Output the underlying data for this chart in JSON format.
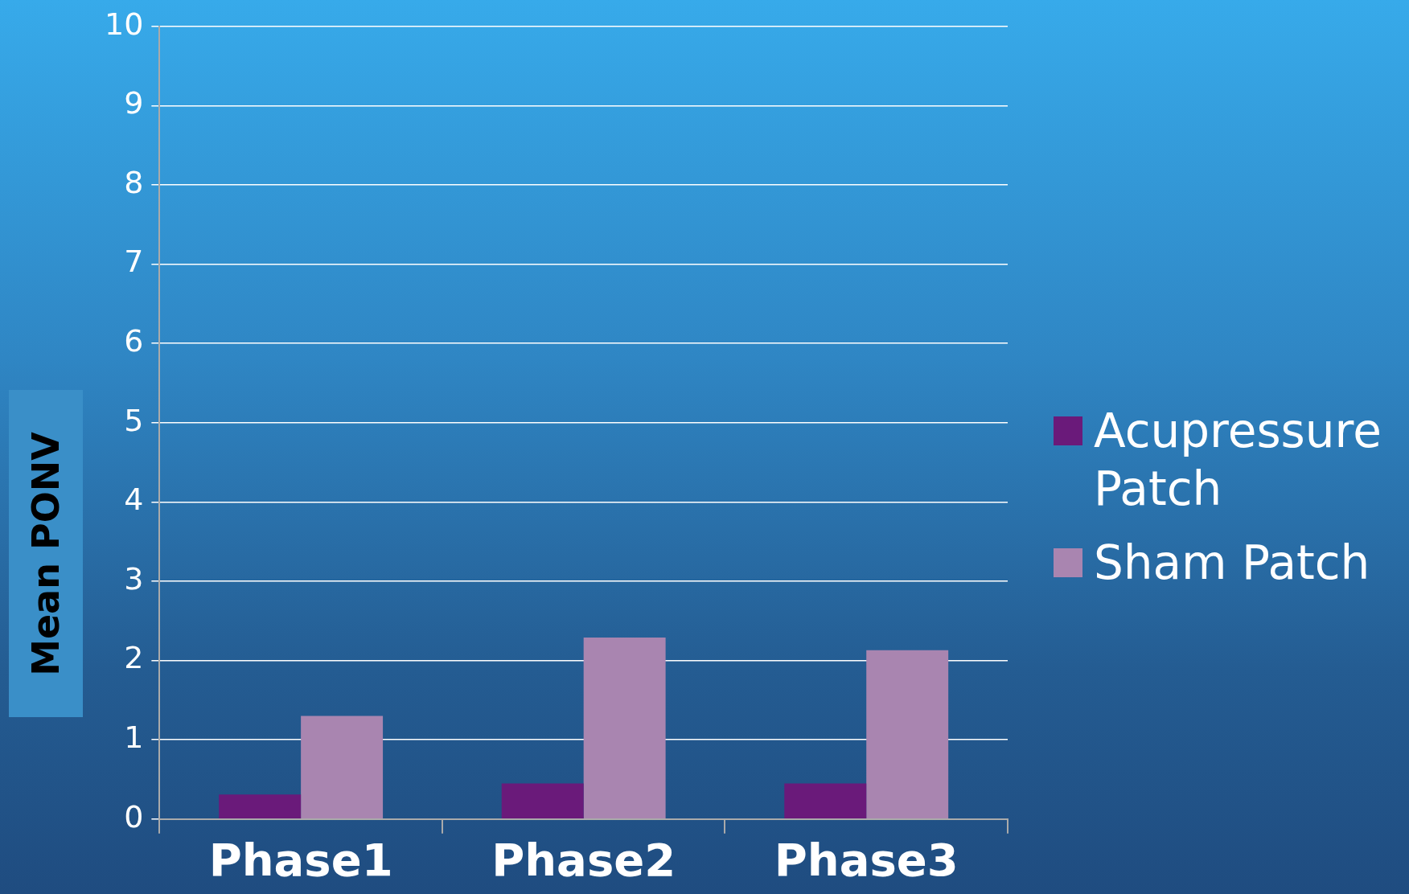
{
  "chart_data": {
    "type": "bar",
    "ylabel": "Mean PONV",
    "categories": [
      "Phase1",
      "Phase2",
      "Phase3"
    ],
    "series": [
      {
        "name": "Acupressure Patch",
        "color": "#6a1a7a",
        "values": [
          0.31,
          0.45,
          0.45
        ]
      },
      {
        "name": "Sham Patch",
        "color": "#a985b0",
        "values": [
          1.3,
          2.29,
          2.13
        ]
      }
    ],
    "ylim": [
      0,
      10
    ],
    "yticks": [
      0,
      1,
      2,
      3,
      4,
      5,
      6,
      7,
      8,
      9,
      10
    ],
    "grid": "y",
    "legend": "right"
  }
}
